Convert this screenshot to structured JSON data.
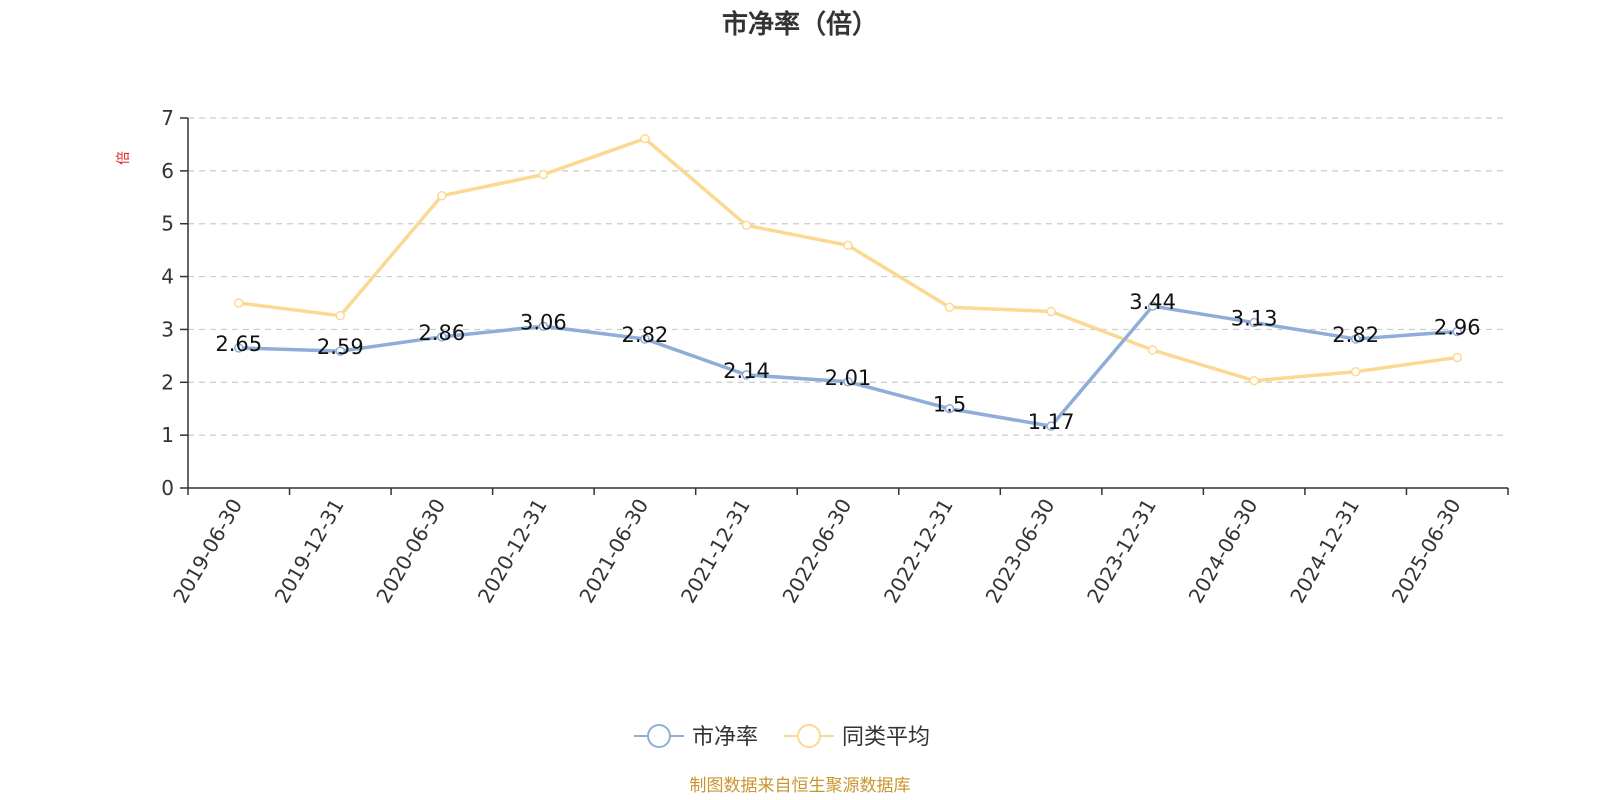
{
  "chart_data": {
    "type": "line",
    "title": "市净率（倍）",
    "ylabel": "倍",
    "xlabel": "",
    "ylim": [
      0,
      7
    ],
    "yticks": [
      0,
      1,
      2,
      3,
      4,
      5,
      6,
      7
    ],
    "grid": true,
    "legend_position": "bottom-center",
    "categories": [
      "2019-06-30",
      "2019-12-31",
      "2020-06-30",
      "2020-12-31",
      "2021-06-30",
      "2021-12-31",
      "2022-06-30",
      "2022-12-31",
      "2023-06-30",
      "2023-12-31",
      "2024-06-30",
      "2024-12-31",
      "2025-06-30"
    ],
    "series": [
      {
        "name": "市净率",
        "color": "#8eadd8",
        "show_labels": true,
        "values": [
          2.65,
          2.59,
          2.86,
          3.06,
          2.82,
          2.14,
          2.01,
          1.5,
          1.17,
          3.44,
          3.13,
          2.82,
          2.96
        ]
      },
      {
        "name": "同类平均",
        "color": "#fcd993",
        "show_labels": false,
        "values": [
          3.5,
          3.26,
          5.53,
          5.93,
          6.61,
          4.97,
          4.59,
          3.42,
          3.34,
          2.61,
          2.03,
          2.2,
          2.47
        ]
      }
    ]
  },
  "footer": {
    "source": "制图数据来自恒生聚源数据库",
    "color": "#c9962e"
  },
  "colors": {
    "ylabel": "#e02020",
    "axis": "#333333",
    "grid": "#cccccc"
  }
}
